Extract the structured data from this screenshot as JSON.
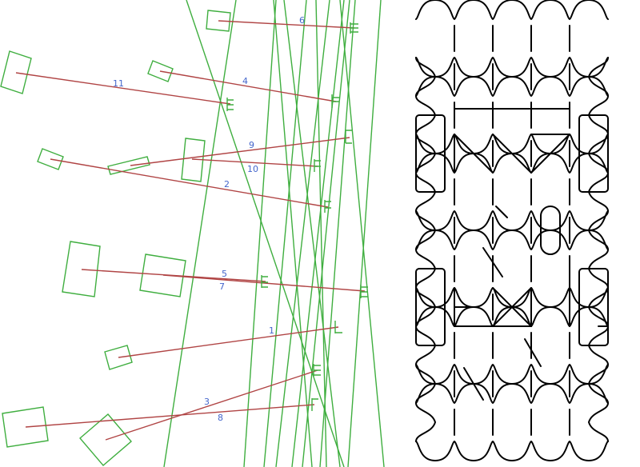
{
  "diagram": {
    "colors": {
      "lines": "#3fae3f",
      "connectors": "#b04444",
      "labels": "#4466cc",
      "pattern": "#000000"
    },
    "connector_labels": [
      "1",
      "2",
      "3",
      "4",
      "5",
      "6",
      "7",
      "8",
      "9",
      "10",
      "11"
    ]
  }
}
